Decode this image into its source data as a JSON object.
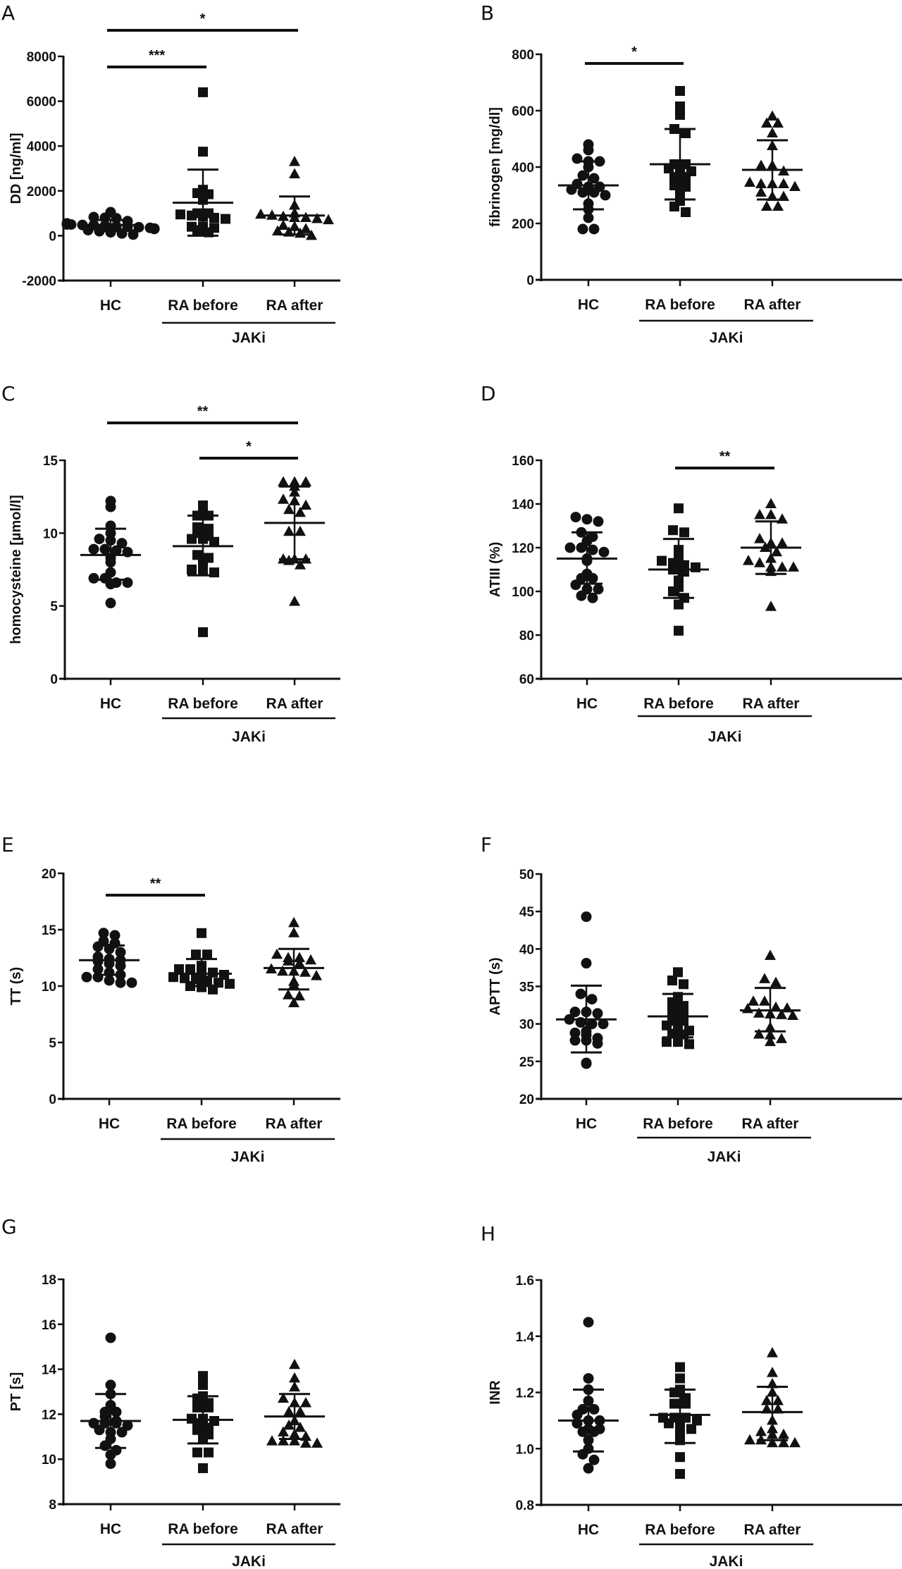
{
  "figure": {
    "groups": [
      "HC",
      "RA before",
      "RA after"
    ],
    "bracket_label": "JAKi",
    "marker_shapes": [
      "circle",
      "square",
      "triangle"
    ],
    "colors": {
      "ink": "#111111",
      "background": "#ffffff"
    }
  },
  "chart_data": [
    {
      "panel": "A",
      "type": "scatter",
      "ylabel": "DD [ng/ml]",
      "ylim": [
        -2000,
        8000
      ],
      "yticks": [
        -2000,
        0,
        2000,
        4000,
        6000,
        8000
      ],
      "categories": [
        "HC",
        "RA before",
        "RA after"
      ],
      "series": [
        {
          "name": "HC",
          "mean": 480,
          "sd_low": 200,
          "sd_high": 700,
          "values": [
            1050,
            780,
            800,
            830,
            650,
            550,
            500,
            480,
            450,
            420,
            400,
            380,
            350,
            320,
            300,
            250,
            200,
            150,
            100,
            50,
            500,
            480
          ]
        },
        {
          "name": "RA before",
          "mean": 1470,
          "sd_low": 0,
          "sd_high": 2950,
          "values": [
            6400,
            3750,
            2050,
            1900,
            1850,
            1600,
            1000,
            1000,
            950,
            900,
            850,
            800,
            750,
            400,
            400,
            350,
            250,
            150
          ]
        },
        {
          "name": "RA after",
          "mean": 900,
          "sd_low": 50,
          "sd_high": 1750,
          "values": [
            3300,
            2750,
            1350,
            1000,
            950,
            900,
            850,
            800,
            800,
            750,
            700,
            450,
            400,
            300,
            200,
            150,
            100,
            0
          ]
        }
      ],
      "comparisons": [
        {
          "from": "HC",
          "to": "RA before",
          "label": "***",
          "level": 1
        },
        {
          "from": "HC",
          "to": "RA after",
          "label": "*",
          "level": 2
        }
      ]
    },
    {
      "panel": "B",
      "type": "scatter",
      "ylabel": "fibrinogen [mg/dl]",
      "ylim": [
        0,
        800
      ],
      "yticks": [
        0,
        200,
        400,
        600,
        800
      ],
      "categories": [
        "HC",
        "RA before",
        "RA after"
      ],
      "series": [
        {
          "name": "HC",
          "mean": 335,
          "sd_low": 250,
          "sd_high": 420,
          "values": [
            480,
            460,
            430,
            420,
            420,
            400,
            370,
            360,
            340,
            330,
            330,
            320,
            310,
            300,
            310,
            270,
            250,
            220,
            180,
            180
          ]
        },
        {
          "name": "RA before",
          "mean": 410,
          "sd_low": 285,
          "sd_high": 535,
          "values": [
            670,
            615,
            585,
            535,
            520,
            410,
            410,
            395,
            385,
            390,
            365,
            365,
            335,
            330,
            300,
            280,
            260,
            240
          ]
        },
        {
          "name": "RA after",
          "mean": 390,
          "sd_low": 285,
          "sd_high": 495,
          "values": [
            580,
            555,
            555,
            520,
            475,
            405,
            405,
            385,
            345,
            340,
            340,
            340,
            330,
            310,
            295,
            295,
            260,
            260
          ]
        }
      ],
      "comparisons": [
        {
          "from": "HC",
          "to": "RA before",
          "label": "*",
          "level": 1
        }
      ]
    },
    {
      "panel": "C",
      "type": "scatter",
      "ylabel": "homocysteine [µmol/l]",
      "ylim": [
        0,
        15
      ],
      "yticks": [
        0,
        5,
        10,
        15
      ],
      "categories": [
        "HC",
        "RA before",
        "RA after"
      ],
      "series": [
        {
          "name": "HC",
          "mean": 8.5,
          "sd_low": 6.8,
          "sd_high": 10.3,
          "values": [
            12.2,
            11.8,
            10.5,
            10.0,
            9.6,
            9.5,
            9.3,
            8.9,
            8.9,
            8.8,
            8.7,
            8.3,
            8.0,
            7.3,
            6.9,
            6.9,
            6.6,
            6.5,
            6.6,
            5.2
          ]
        },
        {
          "name": "RA before",
          "mean": 9.1,
          "sd_low": 7.1,
          "sd_high": 11.2,
          "values": [
            11.9,
            11.3,
            11.2,
            11.2,
            10.4,
            10.3,
            10.0,
            9.8,
            9.6,
            9.6,
            9.4,
            8.5,
            8.3,
            7.9,
            7.4,
            7.3,
            7.5,
            3.2
          ]
        },
        {
          "name": "RA after",
          "mean": 10.7,
          "sd_low": 8.2,
          "sd_high": 13.2,
          "values": [
            13.5,
            13.5,
            13.5,
            13.2,
            12.8,
            12.3,
            12.2,
            11.9,
            11.6,
            11.4,
            10.1,
            10.1,
            8.2,
            8.2,
            8.1,
            8.2,
            7.8,
            5.3
          ]
        }
      ],
      "comparisons": [
        {
          "from": "RA before",
          "to": "RA after",
          "label": "*",
          "level": 1
        },
        {
          "from": "HC",
          "to": "RA after",
          "label": "**",
          "level": 2
        }
      ]
    },
    {
      "panel": "D",
      "type": "scatter",
      "ylabel": "ATIII (%)",
      "ylim": [
        60,
        160
      ],
      "yticks": [
        60,
        80,
        100,
        120,
        140,
        160
      ],
      "categories": [
        "HC",
        "RA before",
        "RA after"
      ],
      "series": [
        {
          "name": "HC",
          "mean": 115,
          "sd_low": 103.5,
          "sd_high": 127,
          "values": [
            134,
            133,
            132,
            127,
            125,
            123,
            120,
            120,
            119,
            118,
            115,
            114,
            108,
            106,
            106,
            103,
            101,
            101,
            98,
            97
          ]
        },
        {
          "name": "RA before",
          "mean": 110,
          "sd_low": 97,
          "sd_high": 124,
          "values": [
            138,
            128,
            127,
            119,
            115,
            114,
            113,
            112,
            111,
            110,
            109,
            105,
            102,
            100,
            97,
            94,
            82
          ]
        },
        {
          "name": "RA after",
          "mean": 120,
          "sd_low": 108,
          "sd_high": 132,
          "values": [
            140,
            135,
            135,
            133,
            124,
            122,
            122,
            120,
            118,
            115,
            114,
            113,
            111,
            111,
            111,
            109,
            93
          ]
        }
      ],
      "comparisons": [
        {
          "from": "RA before",
          "to": "RA after",
          "label": "**",
          "level": 1
        }
      ]
    },
    {
      "panel": "E",
      "type": "scatter",
      "ylabel": "TT (s)",
      "ylim": [
        0,
        20
      ],
      "yticks": [
        0,
        5,
        10,
        15,
        20
      ],
      "categories": [
        "HC",
        "RA before",
        "RA after"
      ],
      "series": [
        {
          "name": "HC",
          "mean": 12.3,
          "sd_low": 11.0,
          "sd_high": 13.6,
          "values": [
            14.7,
            14.5,
            14.0,
            13.8,
            13.5,
            13.3,
            13.0,
            12.6,
            12.4,
            12.3,
            12.2,
            12.0,
            11.8,
            11.5,
            11.2,
            11.0,
            10.8,
            10.8,
            10.5,
            10.3,
            10.3
          ]
        },
        {
          "name": "RA before",
          "mean": 11.1,
          "sd_low": 10.0,
          "sd_high": 12.4,
          "values": [
            14.7,
            12.8,
            12.8,
            11.8,
            11.5,
            11.5,
            11.3,
            11.2,
            11.0,
            10.8,
            10.7,
            10.6,
            10.5,
            10.3,
            10.2,
            10.0,
            9.9,
            9.7
          ]
        },
        {
          "name": "RA after",
          "mean": 11.6,
          "sd_low": 9.7,
          "sd_high": 13.3,
          "values": [
            15.6,
            14.7,
            12.8,
            12.5,
            12.5,
            12.3,
            12.0,
            12.2,
            11.5,
            11.3,
            11.3,
            11.2,
            10.9,
            10.4,
            10.1,
            9.2,
            9.1,
            8.5
          ]
        }
      ],
      "comparisons": [
        {
          "from": "HC",
          "to": "RA before",
          "label": "**",
          "level": 1
        }
      ]
    },
    {
      "panel": "F",
      "type": "scatter",
      "ylabel": "APTT (s)",
      "ylim": [
        20,
        50
      ],
      "yticks": [
        20,
        25,
        30,
        35,
        40,
        45,
        50
      ],
      "categories": [
        "HC",
        "RA before",
        "RA after"
      ],
      "series": [
        {
          "name": "HC",
          "mean": 30.6,
          "sd_low": 26.2,
          "sd_high": 35.1,
          "values": [
            44.3,
            38.1,
            34.0,
            33.3,
            31.6,
            31.4,
            31.6,
            30.6,
            30.2,
            30.0,
            30.0,
            29.0,
            28.8,
            28.5,
            28.1,
            27.8,
            27.8,
            27.4,
            24.7,
            24.8
          ]
        },
        {
          "name": "RA before",
          "mean": 31.0,
          "sd_low": 28.2,
          "sd_high": 34.0,
          "values": [
            36.9,
            35.8,
            35.3,
            33.6,
            32.9,
            32.4,
            31.5,
            31.7,
            30.4,
            30.4,
            29.8,
            29.1,
            29.1,
            28.7,
            28.6,
            27.6,
            27.6,
            27.3
          ]
        },
        {
          "name": "RA after",
          "mean": 31.8,
          "sd_low": 29.0,
          "sd_high": 34.8,
          "values": [
            39.1,
            36.0,
            35.5,
            33.0,
            33.0,
            32.1,
            32.0,
            32.2,
            31.4,
            31.3,
            31.1,
            31.2,
            29.5,
            28.5,
            28.6,
            28.0,
            27.6
          ]
        }
      ],
      "comparisons": []
    },
    {
      "panel": "G",
      "type": "scatter",
      "ylabel": "PT [s]",
      "ylim": [
        8,
        18
      ],
      "yticks": [
        8,
        10,
        12,
        14,
        16,
        18
      ],
      "categories": [
        "HC",
        "RA before",
        "RA after"
      ],
      "series": [
        {
          "name": "HC",
          "mean": 11.7,
          "sd_low": 10.5,
          "sd_high": 12.9,
          "values": [
            15.4,
            13.3,
            12.9,
            12.4,
            12.1,
            12.1,
            11.9,
            11.7,
            11.6,
            11.6,
            11.6,
            11.5,
            11.3,
            11.2,
            11.2,
            10.9,
            10.6,
            10.4,
            10.2,
            9.8
          ]
        },
        {
          "name": "RA before",
          "mean": 11.75,
          "sd_low": 10.7,
          "sd_high": 12.8,
          "values": [
            13.7,
            13.3,
            12.8,
            12.7,
            12.5,
            12.3,
            12.3,
            11.8,
            11.8,
            11.7,
            11.6,
            11.4,
            11.3,
            11.1,
            10.9,
            10.3,
            10.3,
            9.6
          ]
        },
        {
          "name": "RA after",
          "mean": 11.9,
          "sd_low": 10.9,
          "sd_high": 12.9,
          "values": [
            14.2,
            13.6,
            13.2,
            12.7,
            12.5,
            12.5,
            12.1,
            12.1,
            11.7,
            11.5,
            11.4,
            11.2,
            11.1,
            11.0,
            10.8,
            10.8,
            10.7,
            10.7,
            10.8
          ]
        }
      ],
      "comparisons": []
    },
    {
      "panel": "H",
      "type": "scatter",
      "ylabel": "INR",
      "ylim": [
        0.8,
        1.6
      ],
      "yticks": [
        0.8,
        1.0,
        1.2,
        1.4,
        1.6
      ],
      "categories": [
        "HC",
        "RA before",
        "RA after"
      ],
      "series": [
        {
          "name": "HC",
          "mean": 1.1,
          "sd_low": 0.99,
          "sd_high": 1.21,
          "values": [
            1.45,
            1.25,
            1.21,
            1.17,
            1.14,
            1.14,
            1.12,
            1.1,
            1.1,
            1.09,
            1.07,
            1.07,
            1.06,
            1.06,
            1.03,
            1.0,
            0.98,
            0.96,
            0.93
          ]
        },
        {
          "name": "RA before",
          "mean": 1.12,
          "sd_low": 1.02,
          "sd_high": 1.21,
          "values": [
            1.29,
            1.25,
            1.21,
            1.2,
            1.18,
            1.16,
            1.16,
            1.11,
            1.11,
            1.11,
            1.1,
            1.09,
            1.08,
            1.07,
            1.05,
            1.03,
            0.97,
            0.91
          ]
        },
        {
          "name": "RA after",
          "mean": 1.13,
          "sd_low": 1.03,
          "sd_high": 1.22,
          "values": [
            1.34,
            1.27,
            1.23,
            1.2,
            1.17,
            1.17,
            1.14,
            1.14,
            1.1,
            1.07,
            1.06,
            1.05,
            1.05,
            1.03,
            1.03,
            1.02,
            1.02,
            1.02
          ]
        }
      ],
      "comparisons": []
    }
  ]
}
